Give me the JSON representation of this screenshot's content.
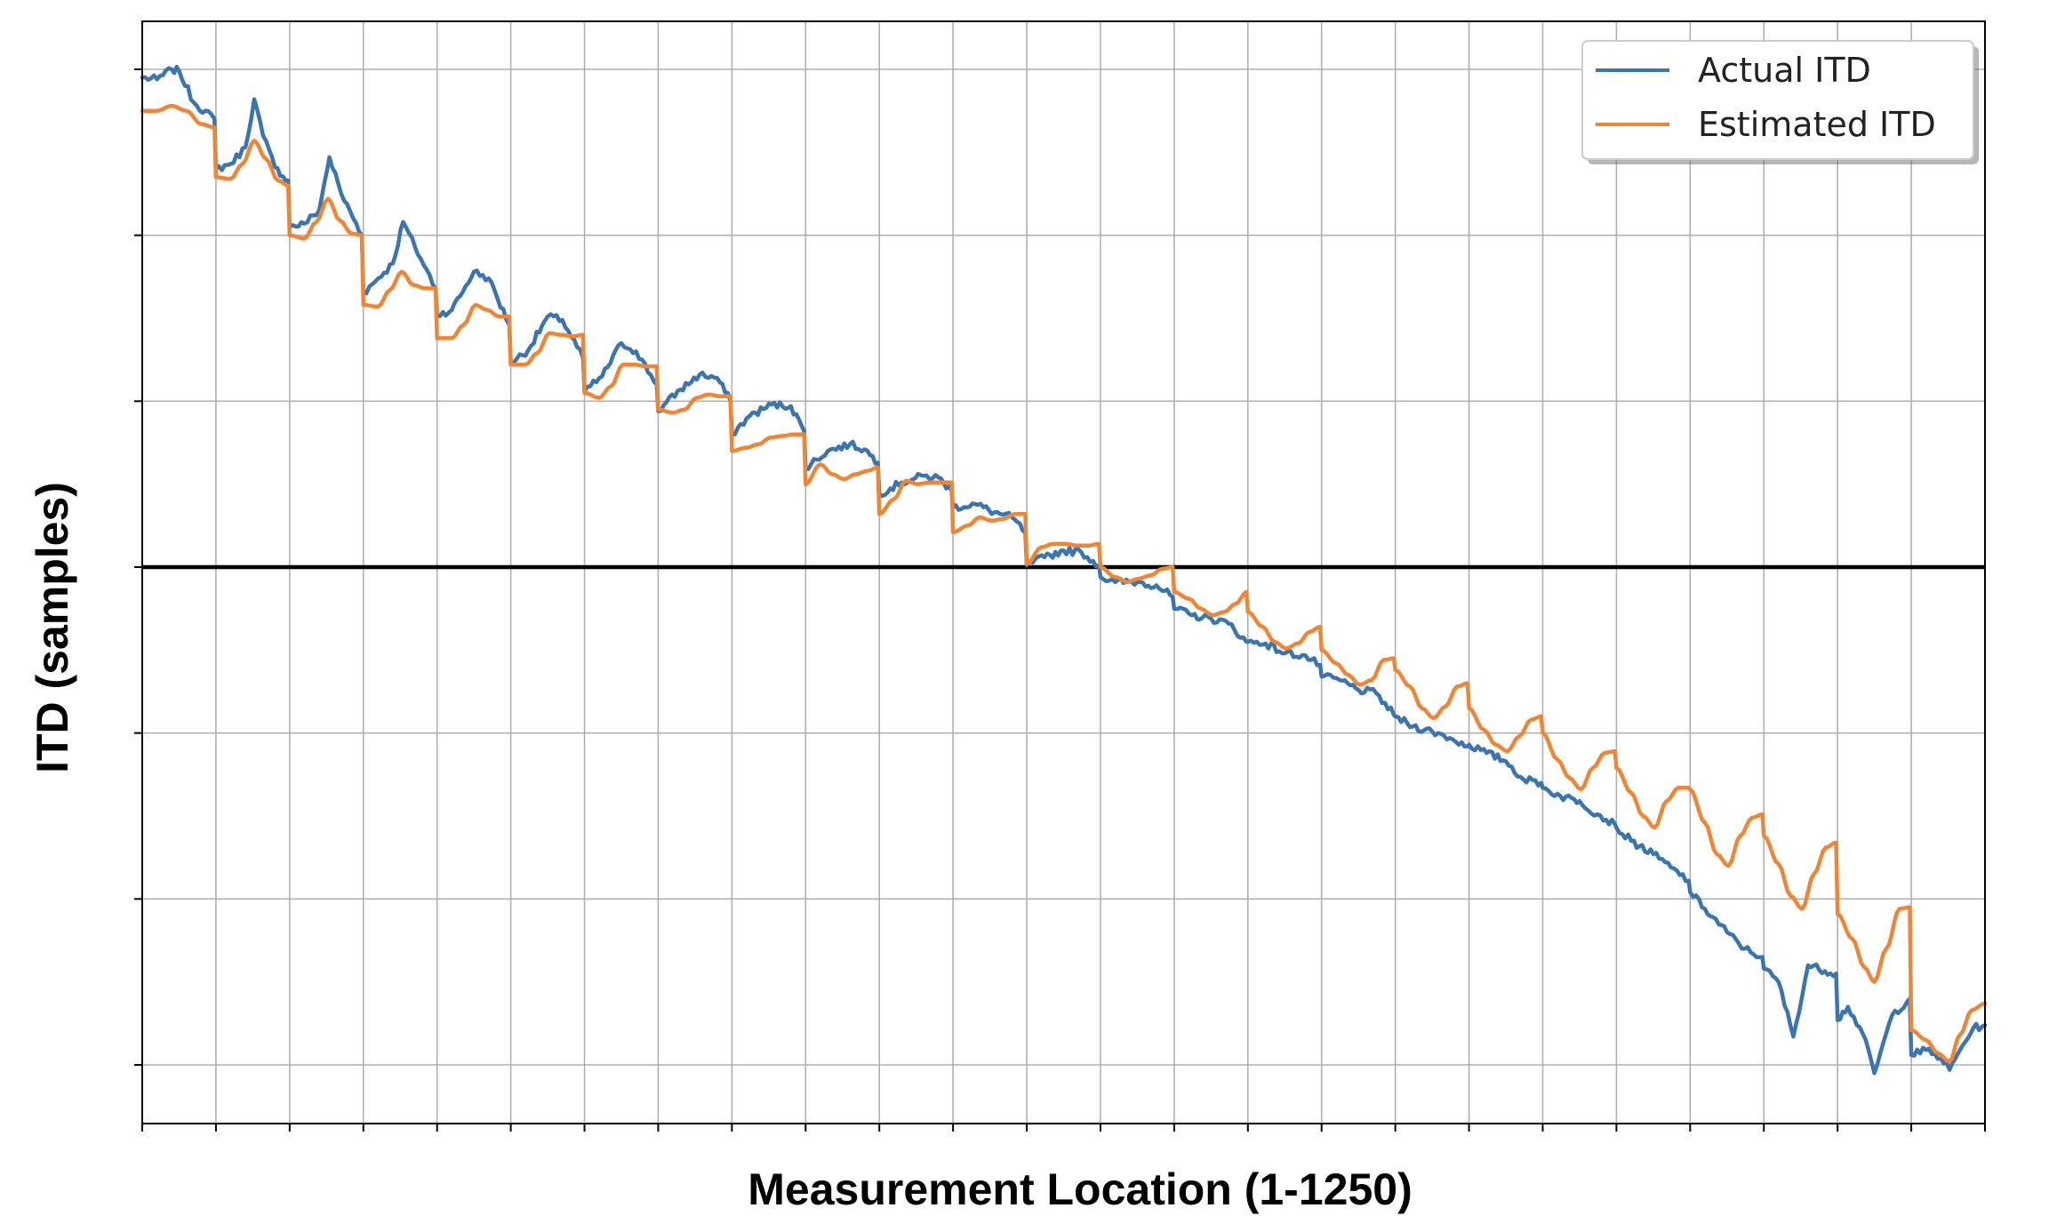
{
  "chart_data": {
    "type": "line",
    "title": "",
    "xlabel": "Measurement Location (1-1250)",
    "ylabel": "ITD (samples)",
    "xlim": [
      0,
      1250
    ],
    "ylim": [
      -33,
      33
    ],
    "x_ticks": [
      0,
      50,
      100,
      150,
      200,
      250,
      300,
      350,
      400,
      450,
      500,
      550,
      600,
      650,
      700,
      750,
      800,
      850,
      900,
      950,
      1000,
      1050,
      1100,
      1150,
      1200,
      1250
    ],
    "y_ticks": [
      -30,
      -20,
      -10,
      0,
      10,
      20,
      30
    ],
    "tick_labels_visible": false,
    "grid": true,
    "zero_line": true,
    "legend_position": "top-right",
    "group_size": 50,
    "series": [
      {
        "name": "Actual ITD",
        "color": "#3b75af",
        "points": [
          [
            0,
            29.5
          ],
          [
            10,
            29.4
          ],
          [
            20,
            30.0
          ],
          [
            25,
            29.9
          ],
          [
            35,
            28.0
          ],
          [
            49,
            27.0
          ],
          [
            50,
            24.0
          ],
          [
            60,
            24.3
          ],
          [
            70,
            25.3
          ],
          [
            76,
            28.2
          ],
          [
            82,
            26.0
          ],
          [
            90,
            24.1
          ],
          [
            99,
            23.3
          ],
          [
            100,
            20.5
          ],
          [
            110,
            20.7
          ],
          [
            120,
            21.5
          ],
          [
            127,
            24.7
          ],
          [
            135,
            22.5
          ],
          [
            149,
            20.0
          ],
          [
            150,
            16.5
          ],
          [
            160,
            17.4
          ],
          [
            170,
            18.3
          ],
          [
            177,
            20.8
          ],
          [
            185,
            19.3
          ],
          [
            199,
            16.8
          ],
          [
            200,
            15.2
          ],
          [
            210,
            15.5
          ],
          [
            225,
            17.8
          ],
          [
            235,
            17.4
          ],
          [
            249,
            14.6
          ],
          [
            250,
            12.3
          ],
          [
            262,
            13.1
          ],
          [
            275,
            15.1
          ],
          [
            285,
            14.9
          ],
          [
            299,
            12.6
          ],
          [
            300,
            10.6
          ],
          [
            312,
            11.5
          ],
          [
            325,
            13.5
          ],
          [
            335,
            13.0
          ],
          [
            349,
            11.0
          ],
          [
            350,
            9.4
          ],
          [
            365,
            10.7
          ],
          [
            378,
            11.6
          ],
          [
            390,
            11.4
          ],
          [
            399,
            10.0
          ],
          [
            400,
            8.0
          ],
          [
            412,
            9.1
          ],
          [
            427,
            9.8
          ],
          [
            440,
            9.7
          ],
          [
            449,
            8.2
          ],
          [
            450,
            6.0
          ],
          [
            465,
            7.0
          ],
          [
            480,
            7.4
          ],
          [
            490,
            7.1
          ],
          [
            499,
            6.3
          ],
          [
            500,
            4.4
          ],
          [
            515,
            5.1
          ],
          [
            530,
            5.5
          ],
          [
            540,
            5.4
          ],
          [
            549,
            4.6
          ],
          [
            550,
            3.6
          ],
          [
            565,
            3.8
          ],
          [
            578,
            3.3
          ],
          [
            590,
            3.0
          ],
          [
            599,
            2.1
          ],
          [
            600,
            0.1
          ],
          [
            612,
            0.6
          ],
          [
            625,
            1.0
          ],
          [
            637,
            0.9
          ],
          [
            649,
            0.1
          ],
          [
            650,
            -0.6
          ],
          [
            660,
            -0.9
          ],
          [
            675,
            -0.9
          ],
          [
            688,
            -1.1
          ],
          [
            699,
            -1.8
          ],
          [
            700,
            -2.5
          ],
          [
            712,
            -2.9
          ],
          [
            725,
            -3.1
          ],
          [
            737,
            -3.4
          ],
          [
            749,
            -4.5
          ],
          [
            750,
            -4.5
          ],
          [
            762,
            -4.6
          ],
          [
            775,
            -5.2
          ],
          [
            787,
            -5.3
          ],
          [
            799,
            -5.9
          ],
          [
            800,
            -6.6
          ],
          [
            812,
            -6.8
          ],
          [
            825,
            -7.4
          ],
          [
            837,
            -7.6
          ],
          [
            849,
            -8.9
          ],
          [
            850,
            -9.0
          ],
          [
            862,
            -9.6
          ],
          [
            875,
            -9.9
          ],
          [
            887,
            -10.3
          ],
          [
            899,
            -10.8
          ],
          [
            900,
            -10.7
          ],
          [
            912,
            -11.2
          ],
          [
            925,
            -11.7
          ],
          [
            937,
            -12.8
          ],
          [
            949,
            -13.0
          ],
          [
            950,
            -13.3
          ],
          [
            962,
            -13.8
          ],
          [
            975,
            -14.1
          ],
          [
            987,
            -14.9
          ],
          [
            999,
            -15.5
          ],
          [
            1000,
            -15.7
          ],
          [
            1010,
            -16.5
          ],
          [
            1025,
            -17.3
          ],
          [
            1037,
            -18.1
          ],
          [
            1049,
            -18.9
          ],
          [
            1050,
            -19.6
          ],
          [
            1060,
            -20.6
          ],
          [
            1075,
            -22.0
          ],
          [
            1087,
            -23.0
          ],
          [
            1099,
            -23.5
          ],
          [
            1100,
            -24.2
          ],
          [
            1110,
            -25.0
          ],
          [
            1120,
            -28.3
          ],
          [
            1130,
            -24.0
          ],
          [
            1149,
            -24.5
          ],
          [
            1150,
            -27.3
          ],
          [
            1157,
            -26.5
          ],
          [
            1167,
            -28.1
          ],
          [
            1175,
            -30.5
          ],
          [
            1187,
            -27.0
          ],
          [
            1199,
            -26.0
          ],
          [
            1200,
            -29.4
          ],
          [
            1210,
            -29.1
          ],
          [
            1220,
            -29.6
          ],
          [
            1226,
            -30.3
          ],
          [
            1235,
            -28.8
          ],
          [
            1242,
            -27.8
          ],
          [
            1250,
            -27.6
          ]
        ]
      },
      {
        "name": "Estimated ITD",
        "color": "#ef8636",
        "points": [
          [
            0,
            27.5
          ],
          [
            10,
            27.5
          ],
          [
            20,
            27.8
          ],
          [
            30,
            27.5
          ],
          [
            40,
            26.7
          ],
          [
            49,
            26.5
          ],
          [
            50,
            23.5
          ],
          [
            60,
            23.4
          ],
          [
            68,
            24.3
          ],
          [
            76,
            25.7
          ],
          [
            84,
            24.6
          ],
          [
            92,
            23.3
          ],
          [
            99,
            23.0
          ],
          [
            100,
            20.0
          ],
          [
            110,
            19.8
          ],
          [
            118,
            20.8
          ],
          [
            126,
            22.2
          ],
          [
            134,
            20.9
          ],
          [
            142,
            20.1
          ],
          [
            149,
            20.0
          ],
          [
            150,
            15.8
          ],
          [
            160,
            15.7
          ],
          [
            168,
            16.7
          ],
          [
            176,
            17.8
          ],
          [
            184,
            17.0
          ],
          [
            192,
            16.8
          ],
          [
            199,
            16.8
          ],
          [
            200,
            13.8
          ],
          [
            210,
            13.8
          ],
          [
            218,
            14.6
          ],
          [
            226,
            15.8
          ],
          [
            234,
            15.5
          ],
          [
            242,
            15.1
          ],
          [
            249,
            15.1
          ],
          [
            250,
            12.2
          ],
          [
            260,
            12.2
          ],
          [
            268,
            12.9
          ],
          [
            276,
            14.1
          ],
          [
            284,
            14.0
          ],
          [
            292,
            13.9
          ],
          [
            299,
            14.0
          ],
          [
            300,
            10.5
          ],
          [
            310,
            10.2
          ],
          [
            318,
            10.9
          ],
          [
            326,
            12.2
          ],
          [
            334,
            12.2
          ],
          [
            342,
            12.1
          ],
          [
            349,
            12.1
          ],
          [
            350,
            9.5
          ],
          [
            360,
            9.3
          ],
          [
            368,
            9.5
          ],
          [
            376,
            10.2
          ],
          [
            384,
            10.4
          ],
          [
            392,
            10.3
          ],
          [
            399,
            10.3
          ],
          [
            400,
            7.0
          ],
          [
            410,
            7.2
          ],
          [
            418,
            7.4
          ],
          [
            426,
            7.8
          ],
          [
            434,
            7.9
          ],
          [
            442,
            8.0
          ],
          [
            449,
            8.0
          ],
          [
            450,
            5.0
          ],
          [
            460,
            6.2
          ],
          [
            468,
            5.6
          ],
          [
            476,
            5.3
          ],
          [
            484,
            5.6
          ],
          [
            492,
            5.8
          ],
          [
            499,
            6.0
          ],
          [
            500,
            3.2
          ],
          [
            510,
            4.1
          ],
          [
            518,
            5.2
          ],
          [
            526,
            5.0
          ],
          [
            534,
            5.1
          ],
          [
            542,
            5.1
          ],
          [
            549,
            5.1
          ],
          [
            550,
            2.1
          ],
          [
            560,
            2.5
          ],
          [
            568,
            3.0
          ],
          [
            576,
            2.8
          ],
          [
            584,
            2.9
          ],
          [
            592,
            3.2
          ],
          [
            599,
            3.2
          ],
          [
            600,
            0.2
          ],
          [
            610,
            1.2
          ],
          [
            618,
            1.4
          ],
          [
            626,
            1.4
          ],
          [
            634,
            1.3
          ],
          [
            642,
            1.3
          ],
          [
            649,
            1.4
          ],
          [
            650,
            0.0
          ],
          [
            660,
            -0.6
          ],
          [
            668,
            -0.9
          ],
          [
            676,
            -0.7
          ],
          [
            684,
            -0.5
          ],
          [
            692,
            -0.1
          ],
          [
            699,
            0.0
          ],
          [
            700,
            -1.5
          ],
          [
            710,
            -1.9
          ],
          [
            718,
            -2.5
          ],
          [
            726,
            -2.9
          ],
          [
            734,
            -2.7
          ],
          [
            742,
            -2.2
          ],
          [
            749,
            -1.5
          ],
          [
            750,
            -2.7
          ],
          [
            760,
            -3.6
          ],
          [
            768,
            -4.5
          ],
          [
            776,
            -4.9
          ],
          [
            784,
            -4.6
          ],
          [
            792,
            -3.9
          ],
          [
            799,
            -3.6
          ],
          [
            800,
            -5.0
          ],
          [
            810,
            -5.8
          ],
          [
            818,
            -6.5
          ],
          [
            826,
            -7.1
          ],
          [
            834,
            -6.8
          ],
          [
            842,
            -5.6
          ],
          [
            849,
            -5.5
          ],
          [
            850,
            -6.2
          ],
          [
            860,
            -7.2
          ],
          [
            868,
            -8.5
          ],
          [
            876,
            -9.1
          ],
          [
            884,
            -8.4
          ],
          [
            892,
            -7.2
          ],
          [
            899,
            -7.0
          ],
          [
            900,
            -8.5
          ],
          [
            910,
            -9.8
          ],
          [
            918,
            -10.7
          ],
          [
            926,
            -11.1
          ],
          [
            934,
            -10.2
          ],
          [
            942,
            -9.2
          ],
          [
            949,
            -9.0
          ],
          [
            950,
            -10.0
          ],
          [
            960,
            -11.6
          ],
          [
            968,
            -12.7
          ],
          [
            976,
            -13.4
          ],
          [
            984,
            -12.1
          ],
          [
            992,
            -11.2
          ],
          [
            999,
            -11.1
          ],
          [
            1000,
            -12.1
          ],
          [
            1010,
            -13.6
          ],
          [
            1018,
            -15.0
          ],
          [
            1026,
            -15.7
          ],
          [
            1034,
            -14.1
          ],
          [
            1042,
            -13.3
          ],
          [
            1049,
            -13.3
          ],
          [
            1050,
            -13.4
          ],
          [
            1060,
            -15.4
          ],
          [
            1068,
            -17.3
          ],
          [
            1076,
            -18.0
          ],
          [
            1084,
            -16.2
          ],
          [
            1092,
            -15.1
          ],
          [
            1099,
            -14.9
          ],
          [
            1100,
            -16.2
          ],
          [
            1110,
            -17.9
          ],
          [
            1118,
            -19.8
          ],
          [
            1126,
            -20.6
          ],
          [
            1134,
            -18.5
          ],
          [
            1142,
            -16.9
          ],
          [
            1149,
            -16.6
          ],
          [
            1150,
            -20.9
          ],
          [
            1160,
            -22.4
          ],
          [
            1168,
            -24.1
          ],
          [
            1175,
            -25.0
          ],
          [
            1183,
            -23.0
          ],
          [
            1192,
            -20.6
          ],
          [
            1199,
            -20.5
          ],
          [
            1200,
            -27.9
          ],
          [
            1210,
            -28.5
          ],
          [
            1218,
            -29.3
          ],
          [
            1226,
            -29.8
          ],
          [
            1233,
            -28.2
          ],
          [
            1241,
            -26.7
          ],
          [
            1250,
            -26.3
          ]
        ]
      }
    ]
  }
}
